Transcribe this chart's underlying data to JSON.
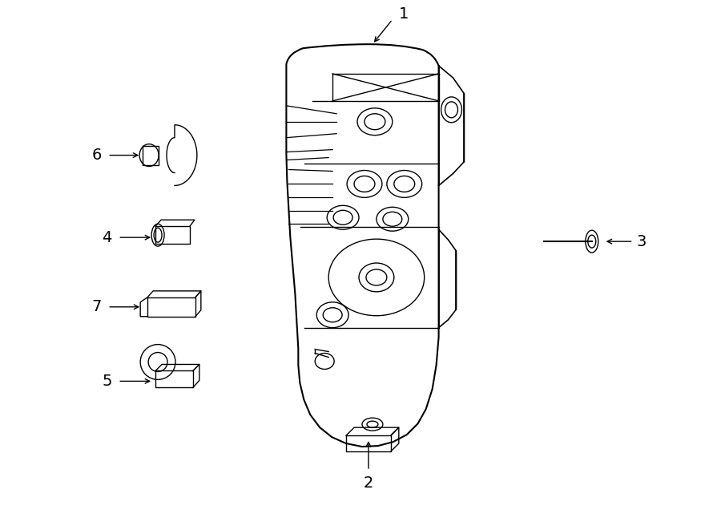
{
  "bg_color": "#ffffff",
  "line_color": "#000000",
  "lw": 1.3,
  "lw_thin": 0.9
}
